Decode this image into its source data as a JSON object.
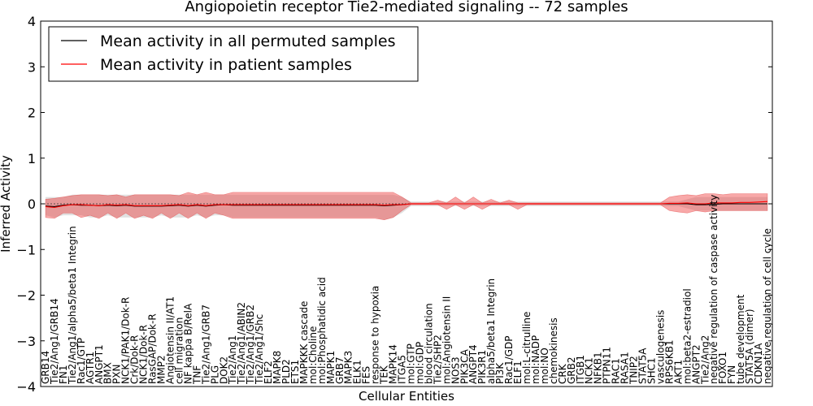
{
  "chart_data": {
    "type": "line",
    "title": "Angiopoietin receptor Tie2-mediated signaling -- 72 samples",
    "xlabel": "Cellular Entities",
    "ylabel": "Inferred Activity",
    "ylim": [
      -4,
      4
    ],
    "yticks": [
      "4",
      "3",
      "2",
      "1",
      "0",
      "−1",
      "−2",
      "−3",
      "−4"
    ],
    "grid": false,
    "legend_position": "top-left",
    "categories": [
      "GRB14",
      "Tie2/Ang1/GRB14",
      "FN1",
      "Tie2/Ang1/alpha5/beta1 Integrin",
      "Rac1/GTP",
      "AGTR1",
      "ANGPT1",
      "BMX",
      "PXN",
      "NCK1/PAK1/Dok-R",
      "Crk/Dok-R",
      "NCK1/Dok-R",
      "RasGAP/Dok-R",
      "MMP2",
      "Angiotensin II/AT1",
      "cell migration",
      "NF kappa B/RelA",
      "TNF",
      "Tie2/Ang1/GRB7",
      "PLG",
      "DOK2",
      "Tie2/Ang1",
      "Tie2/Ang1/ABIN2",
      "Tie2/Ang1/GRB2",
      "Tie2/Ang1/Shc",
      "ELF2",
      "MAPK8",
      "PLD2",
      "ETS1",
      "MAPKKK cascade",
      "mol:Choline",
      "mol:Phosphatidic acid",
      "MAPK1",
      "GRB7",
      "MAPK3",
      "ELK1",
      "FES",
      "response to hypoxia",
      "TEK",
      "MAPK14",
      "ITGA5",
      "mol:GTP",
      "mol:GDP",
      "blood circulation",
      "Tie2/SHP2",
      "mol:Angiotensin II",
      "NOS3",
      "PIK3CA",
      "ANGPT4",
      "PIK3R1",
      "alpha5/beta1 Integrin",
      "PI3K",
      "Rac1/GDP",
      "ELF1",
      "mol:L-citrulline",
      "mol:NADP",
      "mol:NO",
      "chemokinesis",
      "CRK",
      "GRB2",
      "ITGB1",
      "NCK1",
      "NFKB1",
      "PTPN11",
      "RAC1",
      "RASA1",
      "TNIP2",
      "STAT5A",
      "SHC1",
      "vasculogenesis",
      "RPS6KB1",
      "AKT1",
      "mol:beta2-estradiol",
      "ANGPT2",
      "Tie2/Ang2",
      "negative regulation of caspase activity",
      "FOXO1",
      "FYN",
      "tube development",
      "STAT5A (dimer)",
      "CDKN1A",
      "negative regulation of cell cycle"
    ],
    "series": [
      {
        "name": "Mean activity in all permuted samples",
        "color": "#000000",
        "values": [
          -0.05,
          -0.06,
          -0.03,
          -0.02,
          -0.03,
          -0.03,
          -0.04,
          -0.03,
          -0.04,
          -0.03,
          -0.05,
          -0.05,
          -0.05,
          -0.05,
          -0.04,
          -0.03,
          -0.05,
          -0.03,
          -0.05,
          -0.03,
          -0.02,
          -0.03,
          -0.03,
          -0.03,
          -0.03,
          -0.03,
          -0.03,
          -0.03,
          -0.03,
          -0.03,
          -0.03,
          -0.03,
          -0.03,
          -0.03,
          -0.03,
          -0.03,
          -0.03,
          -0.03,
          -0.04,
          -0.03,
          -0.02,
          0.0,
          0.0,
          0.0,
          0.0,
          0.0,
          0.0,
          0.0,
          0.0,
          0.0,
          0.0,
          0.0,
          0.0,
          0.0,
          0.0,
          0.0,
          0.0,
          0.0,
          0.0,
          0.0,
          0.0,
          0.0,
          0.0,
          0.0,
          0.0,
          0.0,
          0.0,
          0.0,
          0.0,
          0.0,
          0.0,
          0.0,
          0.0,
          -0.02,
          -0.02,
          -0.01,
          0.0,
          0.0,
          0.0,
          0.0,
          0.0,
          0.0
        ],
        "lower": [
          -0.25,
          -0.3,
          -0.25,
          -0.25,
          -0.25,
          -0.3,
          -0.3,
          -0.25,
          -0.3,
          -0.3,
          -0.3,
          -0.3,
          -0.3,
          -0.25,
          -0.3,
          -0.3,
          -0.3,
          -0.25,
          -0.3,
          -0.25,
          -0.25,
          -0.3,
          -0.3,
          -0.3,
          -0.3,
          -0.3,
          -0.3,
          -0.3,
          -0.3,
          -0.3,
          -0.3,
          -0.3,
          -0.3,
          -0.3,
          -0.3,
          -0.3,
          -0.3,
          -0.3,
          -0.35,
          -0.3,
          -0.2,
          -0.05,
          -0.05,
          -0.05,
          -0.05,
          -0.05,
          -0.05,
          -0.05,
          -0.05,
          -0.05,
          -0.05,
          -0.05,
          -0.05,
          -0.05,
          -0.05,
          -0.05,
          -0.05,
          -0.05,
          -0.05,
          -0.05,
          -0.05,
          -0.05,
          -0.05,
          -0.05,
          -0.05,
          -0.05,
          -0.05,
          -0.05,
          -0.05,
          -0.05,
          -0.05,
          -0.05,
          -0.1,
          -0.15,
          -0.15,
          -0.15,
          -0.15,
          -0.15,
          -0.15,
          -0.15,
          -0.15,
          -0.15
        ],
        "upper": [
          0.15,
          0.15,
          0.15,
          0.2,
          0.2,
          0.2,
          0.2,
          0.2,
          0.2,
          0.2,
          0.2,
          0.2,
          0.2,
          0.2,
          0.2,
          0.2,
          0.2,
          0.2,
          0.2,
          0.2,
          0.2,
          0.2,
          0.2,
          0.2,
          0.2,
          0.2,
          0.2,
          0.2,
          0.2,
          0.2,
          0.2,
          0.2,
          0.2,
          0.2,
          0.2,
          0.2,
          0.2,
          0.2,
          0.2,
          0.2,
          0.15,
          0.05,
          0.05,
          0.05,
          0.05,
          0.05,
          0.05,
          0.05,
          0.05,
          0.05,
          0.05,
          0.05,
          0.05,
          0.05,
          0.05,
          0.05,
          0.05,
          0.05,
          0.05,
          0.05,
          0.05,
          0.05,
          0.05,
          0.05,
          0.05,
          0.05,
          0.05,
          0.05,
          0.05,
          0.05,
          0.05,
          0.05,
          0.1,
          0.15,
          0.15,
          0.15,
          0.15,
          0.15,
          0.15,
          0.15,
          0.15,
          0.15
        ]
      },
      {
        "name": "Mean activity in patient samples",
        "color": "#ff0000",
        "values": [
          -0.06,
          -0.08,
          -0.04,
          -0.02,
          -0.02,
          -0.03,
          -0.04,
          -0.02,
          -0.03,
          -0.02,
          -0.04,
          -0.04,
          -0.04,
          -0.04,
          -0.03,
          -0.02,
          -0.04,
          -0.02,
          -0.04,
          -0.02,
          -0.02,
          -0.02,
          -0.02,
          -0.02,
          -0.02,
          -0.02,
          -0.02,
          -0.02,
          -0.02,
          -0.02,
          -0.02,
          -0.02,
          -0.02,
          -0.02,
          -0.02,
          -0.02,
          -0.02,
          -0.02,
          -0.03,
          -0.02,
          -0.02,
          0.0,
          0.0,
          0.0,
          0.0,
          0.0,
          0.0,
          0.0,
          0.0,
          0.0,
          0.0,
          0.0,
          0.0,
          0.0,
          0.0,
          0.0,
          0.0,
          0.0,
          0.0,
          0.0,
          0.0,
          0.0,
          0.0,
          0.0,
          0.0,
          0.0,
          0.0,
          0.0,
          0.0,
          0.0,
          0.01,
          0.01,
          0.02,
          0.0,
          0.0,
          0.02,
          0.02,
          0.02,
          0.03,
          0.03,
          0.04,
          0.05
        ],
        "lower": [
          -0.3,
          -0.32,
          -0.2,
          -0.2,
          -0.3,
          -0.25,
          -0.32,
          -0.2,
          -0.32,
          -0.2,
          -0.32,
          -0.25,
          -0.32,
          -0.2,
          -0.32,
          -0.2,
          -0.32,
          -0.2,
          -0.32,
          -0.2,
          -0.25,
          -0.32,
          -0.32,
          -0.32,
          -0.32,
          -0.32,
          -0.32,
          -0.32,
          -0.32,
          -0.32,
          -0.32,
          -0.32,
          -0.32,
          -0.32,
          -0.32,
          -0.32,
          -0.32,
          -0.32,
          -0.35,
          -0.3,
          -0.15,
          -0.02,
          -0.02,
          -0.02,
          -0.02,
          -0.12,
          -0.02,
          -0.12,
          -0.02,
          -0.12,
          -0.02,
          -0.02,
          -0.02,
          -0.12,
          -0.02,
          -0.02,
          -0.02,
          -0.02,
          -0.02,
          -0.02,
          -0.02,
          -0.02,
          -0.02,
          -0.02,
          -0.02,
          -0.02,
          -0.02,
          -0.02,
          -0.02,
          -0.02,
          -0.15,
          -0.18,
          -0.2,
          -0.15,
          -0.18,
          -0.15,
          -0.15,
          -0.15,
          -0.15,
          -0.15,
          -0.15,
          -0.15
        ],
        "upper": [
          0.1,
          0.12,
          0.15,
          0.18,
          0.2,
          0.2,
          0.2,
          0.18,
          0.2,
          0.15,
          0.2,
          0.2,
          0.2,
          0.2,
          0.2,
          0.18,
          0.25,
          0.2,
          0.25,
          0.2,
          0.2,
          0.25,
          0.25,
          0.25,
          0.25,
          0.25,
          0.25,
          0.25,
          0.25,
          0.25,
          0.25,
          0.25,
          0.25,
          0.25,
          0.25,
          0.25,
          0.25,
          0.25,
          0.25,
          0.25,
          0.15,
          0.02,
          0.02,
          0.02,
          0.08,
          0.02,
          0.15,
          0.02,
          0.15,
          0.02,
          0.1,
          0.02,
          0.08,
          0.02,
          0.02,
          0.02,
          0.02,
          0.02,
          0.02,
          0.02,
          0.02,
          0.02,
          0.02,
          0.02,
          0.02,
          0.02,
          0.02,
          0.02,
          0.02,
          0.02,
          0.15,
          0.18,
          0.2,
          0.18,
          0.22,
          0.22,
          0.2,
          0.22,
          0.22,
          0.22,
          0.22,
          0.22
        ]
      }
    ]
  }
}
